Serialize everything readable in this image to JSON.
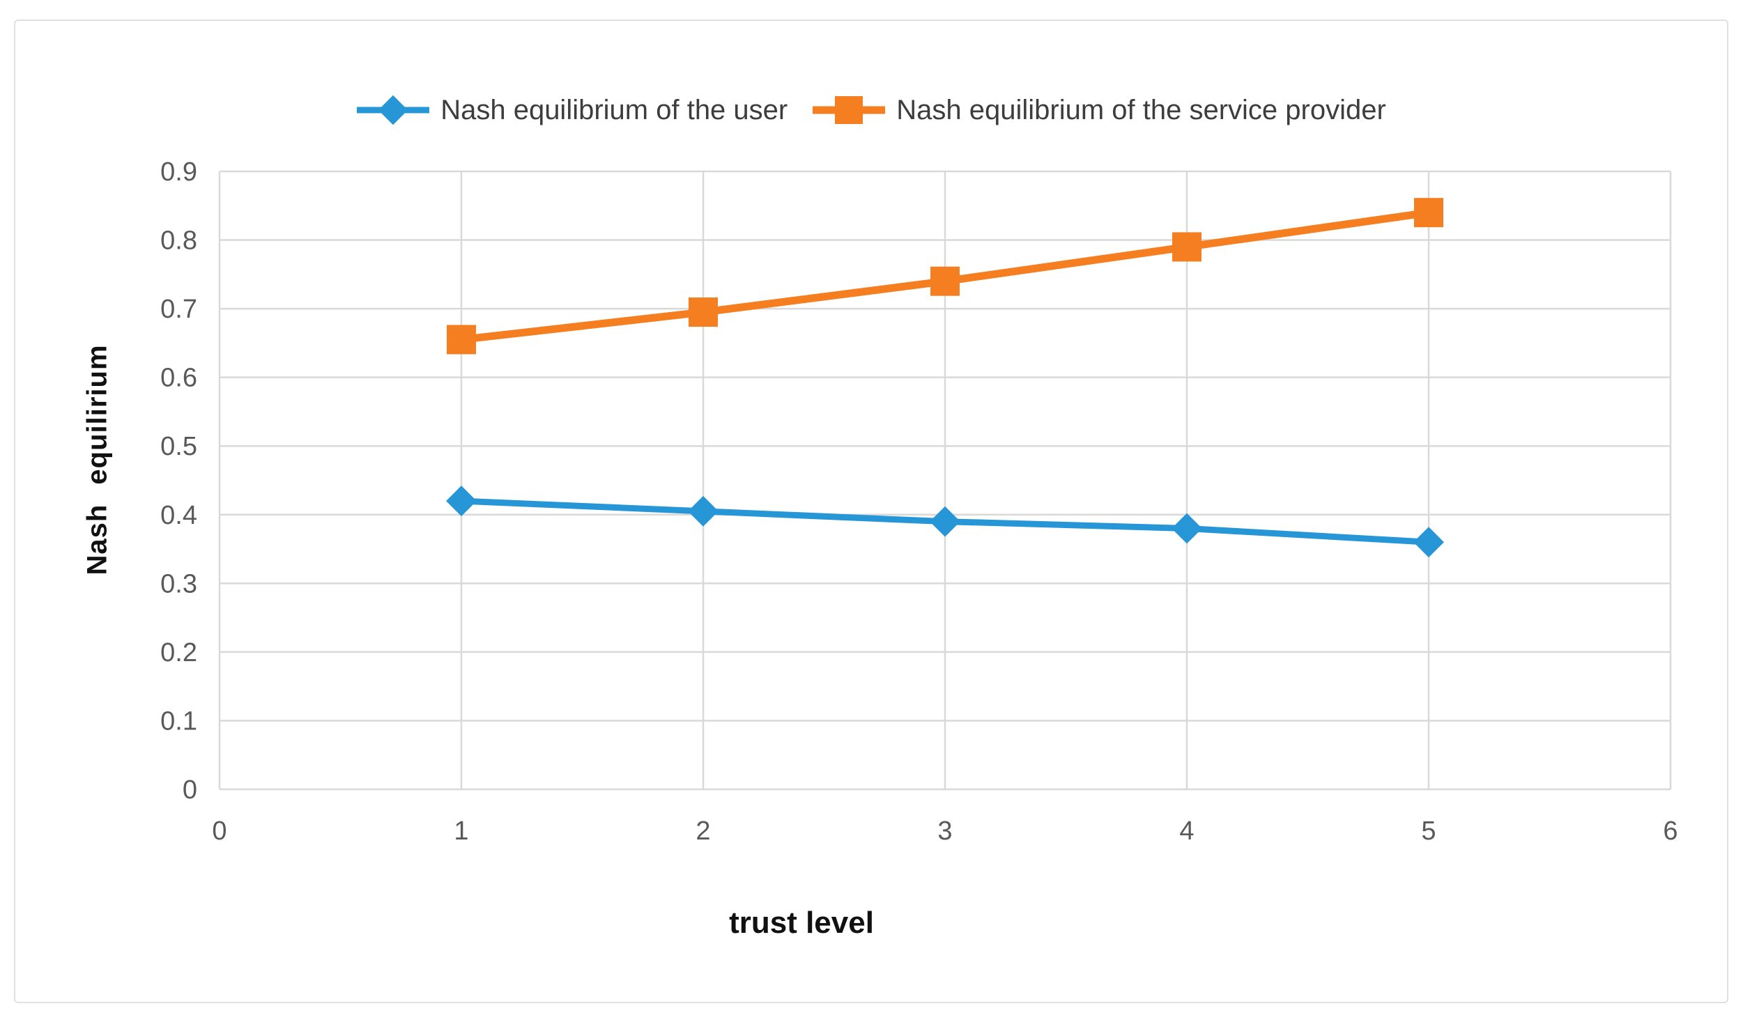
{
  "figure": {
    "background": "#FFFFFF",
    "border_color": "#E0E0E0",
    "grid_color": "#D9D9D9",
    "tick_label_color": "#595959"
  },
  "chart_data": {
    "type": "line",
    "title": "",
    "xlabel": "trust level",
    "ylabel": "Nash equilirium",
    "x": [
      1,
      2,
      3,
      4,
      5
    ],
    "series": [
      {
        "name": "Nash equilibrium of the user",
        "color": "#2696D6",
        "marker": "diamond",
        "line_width": 9,
        "marker_size": 31,
        "values": [
          0.42,
          0.405,
          0.39,
          0.38,
          0.36
        ]
      },
      {
        "name": "Nash equilibrium of the service provider",
        "color": "#F57E20",
        "marker": "square",
        "line_width": 11,
        "marker_size": 42,
        "values": [
          0.655,
          0.695,
          0.74,
          0.79,
          0.84
        ]
      }
    ],
    "xlim": [
      0,
      6
    ],
    "ylim": [
      0,
      0.9
    ],
    "x_tick_labels": [
      "0",
      "1",
      "2",
      "3",
      "4",
      "5",
      "6"
    ],
    "x_tick_values": [
      0,
      1,
      2,
      3,
      4,
      5,
      6
    ],
    "y_tick_labels": [
      "0",
      "0.1",
      "0.2",
      "0.3",
      "0.4",
      "0.5",
      "0.6",
      "0.7",
      "0.8",
      "0.9"
    ],
    "y_tick_values": [
      0,
      0.1,
      0.2,
      0.3,
      0.4,
      0.5,
      0.6,
      0.7,
      0.8,
      0.9
    ],
    "grid": true,
    "legend_position": "top"
  }
}
